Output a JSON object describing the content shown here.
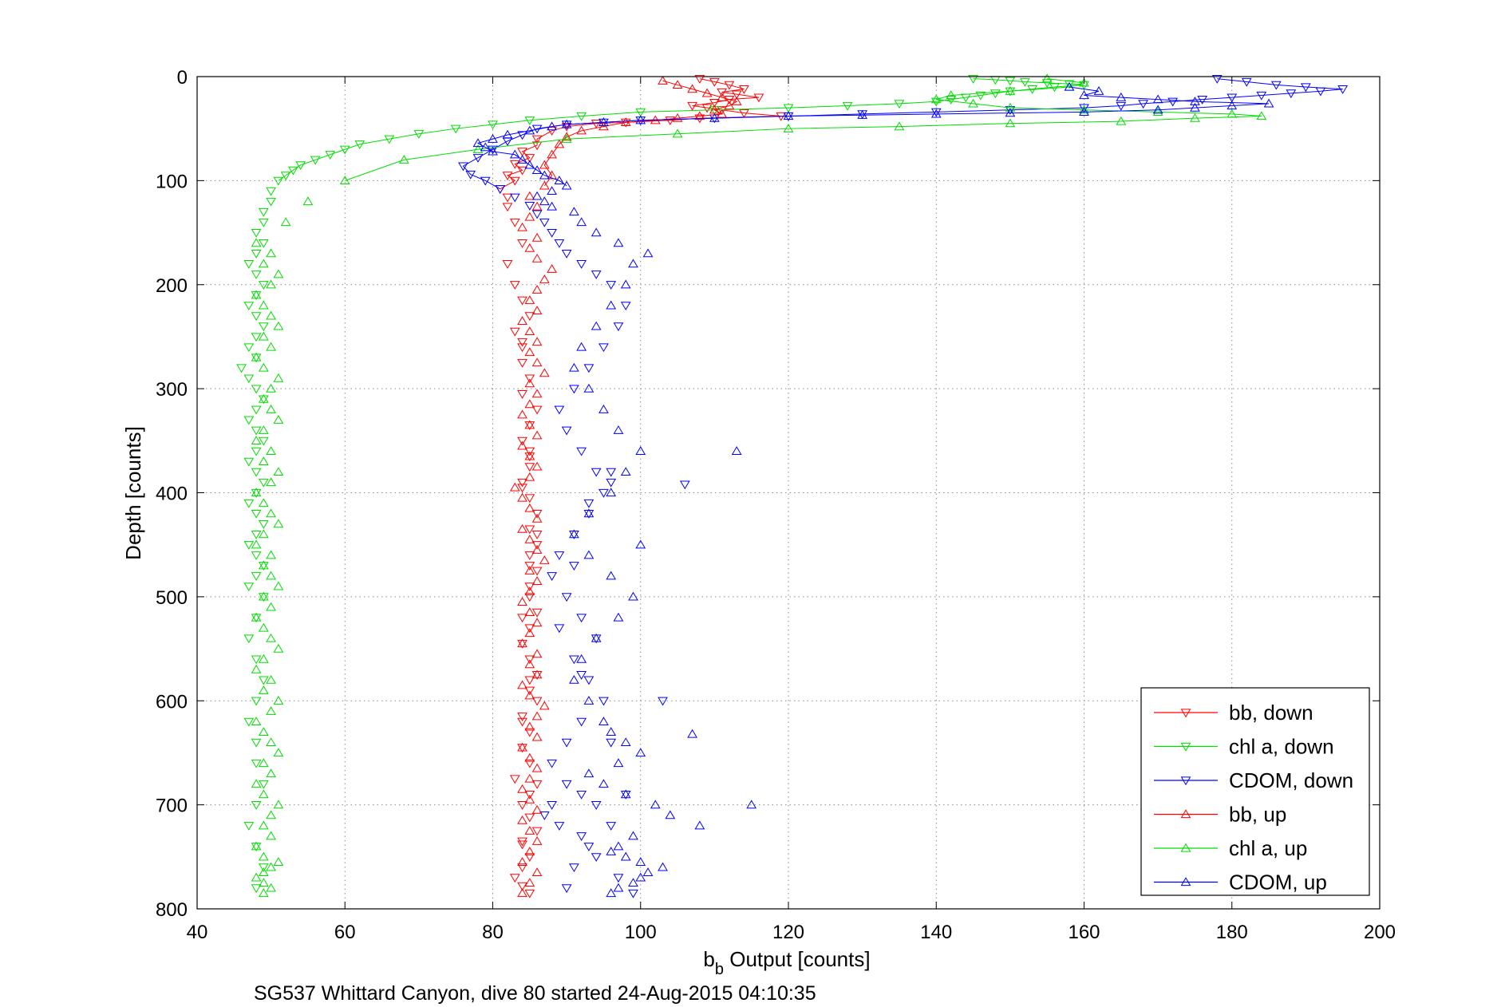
{
  "chart_data": {
    "type": "scatter",
    "xlabel_main": "b",
    "xlabel_sub": "b",
    "xlabel_rest": " Output [counts]",
    "ylabel": "Depth [counts]",
    "caption": "SG537 Whittard Canyon, dive 80 started 24-Aug-2015 04:10:35",
    "xlim": [
      40,
      200
    ],
    "ylim": [
      0,
      800
    ],
    "y_reversed": true,
    "xticks": [
      40,
      60,
      80,
      100,
      120,
      140,
      160,
      180,
      200
    ],
    "yticks": [
      0,
      100,
      200,
      300,
      400,
      500,
      600,
      700,
      800
    ],
    "xtick_labels": [
      "40",
      "60",
      "80",
      "100",
      "120",
      "140",
      "160",
      "180",
      "200"
    ],
    "ytick_labels": [
      "0",
      "100",
      "200",
      "300",
      "400",
      "500",
      "600",
      "700",
      "800"
    ],
    "grid": true,
    "legend_position": "bottom-right",
    "series": [
      {
        "name": "bb, down",
        "color": "#ff0000",
        "marker": "triangle-down",
        "x": [
          108,
          110,
          112,
          114,
          111,
          113,
          116,
          112,
          110,
          107,
          109,
          111,
          114,
          119,
          108,
          104,
          98,
          94,
          90,
          88,
          86,
          86,
          84,
          85,
          83,
          84,
          82,
          83,
          81,
          82,
          82,
          83,
          84,
          82,
          83,
          84,
          85,
          83,
          84,
          84,
          85,
          84,
          86,
          85,
          84,
          85,
          85,
          84,
          85,
          86,
          85,
          86,
          85,
          86,
          85,
          85,
          86,
          85,
          84,
          85,
          86,
          85,
          86,
          84,
          85,
          84,
          85,
          83,
          85,
          84,
          85,
          86,
          84,
          85,
          84,
          83,
          84,
          85,
          84,
          85,
          84,
          86,
          85,
          84,
          85,
          84,
          86,
          84
        ],
        "y": [
          2,
          5,
          8,
          12,
          15,
          17,
          20,
          22,
          25,
          28,
          30,
          32,
          35,
          38,
          40,
          42,
          44,
          45,
          48,
          52,
          60,
          66,
          72,
          78,
          84,
          90,
          95,
          100,
          108,
          116,
          125,
          140,
          160,
          180,
          200,
          215,
          230,
          245,
          260,
          275,
          290,
          305,
          320,
          335,
          350,
          360,
          375,
          390,
          405,
          420,
          435,
          450,
          460,
          475,
          490,
          500,
          515,
          530,
          545,
          560,
          575,
          590,
          600,
          615,
          630,
          645,
          660,
          675,
          690,
          700,
          712,
          725,
          738,
          750,
          760,
          770,
          778,
          785,
          255,
          365,
          395,
          440,
          470,
          520,
          580,
          620,
          680,
          735
        ]
      },
      {
        "name": "chl a, down",
        "color": "#00dd00",
        "marker": "triangle-down",
        "x": [
          145,
          148,
          150,
          152,
          155,
          158,
          160,
          156,
          153,
          150,
          148,
          146,
          144,
          142,
          140,
          135,
          128,
          120,
          110,
          100,
          92,
          85,
          80,
          75,
          70,
          66,
          62,
          60,
          58,
          56,
          54,
          53,
          52,
          51,
          50,
          50,
          49,
          49,
          48,
          49,
          48,
          47,
          48,
          49,
          48,
          47,
          48,
          49,
          48,
          47,
          48,
          46,
          47,
          48,
          49,
          48,
          47,
          48,
          49,
          48,
          47,
          48,
          49,
          48,
          47,
          48,
          49,
          48,
          47,
          48,
          49,
          48,
          47,
          49,
          48,
          47,
          48,
          49,
          48,
          47,
          48,
          48,
          49,
          48,
          47,
          48,
          49,
          48
        ],
        "y": [
          2,
          3,
          4,
          5,
          6,
          7,
          8,
          10,
          12,
          14,
          16,
          18,
          20,
          22,
          24,
          26,
          28,
          30,
          32,
          34,
          38,
          42,
          46,
          50,
          55,
          60,
          65,
          70,
          75,
          80,
          85,
          90,
          95,
          100,
          110,
          120,
          130,
          140,
          150,
          160,
          170,
          180,
          190,
          200,
          210,
          220,
          230,
          240,
          250,
          260,
          270,
          280,
          290,
          300,
          310,
          320,
          330,
          340,
          350,
          360,
          370,
          380,
          390,
          400,
          410,
          420,
          430,
          440,
          450,
          460,
          470,
          480,
          490,
          500,
          520,
          540,
          560,
          580,
          600,
          620,
          640,
          660,
          680,
          700,
          720,
          740,
          760,
          780
        ]
      },
      {
        "name": "CDOM, down",
        "color": "#0000ff",
        "marker": "triangle-down",
        "x": [
          178,
          182,
          186,
          190,
          195,
          192,
          188,
          184,
          180,
          176,
          172,
          168,
          165,
          160,
          150,
          140,
          130,
          120,
          110,
          100,
          95,
          90,
          86,
          84,
          82,
          80,
          78,
          76,
          77,
          79,
          81,
          83,
          85,
          86,
          87,
          88,
          89,
          90,
          92,
          94,
          96,
          98,
          97,
          95,
          93,
          91,
          89,
          90,
          92,
          94,
          96,
          95,
          93,
          91,
          89,
          88,
          90,
          92,
          94,
          106,
          91,
          93,
          95,
          92,
          90,
          88,
          90,
          92,
          103,
          94,
          96,
          93,
          91,
          90,
          88,
          87,
          89,
          92,
          94,
          97,
          99,
          96,
          93,
          91,
          89,
          92,
          96,
          98
        ],
        "y": [
          2,
          5,
          8,
          10,
          12,
          14,
          16,
          18,
          20,
          22,
          24,
          26,
          28,
          30,
          32,
          34,
          36,
          38,
          40,
          42,
          44,
          46,
          50,
          56,
          62,
          70,
          78,
          86,
          94,
          100,
          108,
          116,
          124,
          132,
          140,
          150,
          160,
          170,
          180,
          190,
          200,
          220,
          240,
          260,
          280,
          300,
          320,
          340,
          360,
          380,
          390,
          400,
          420,
          440,
          460,
          480,
          500,
          520,
          540,
          392,
          560,
          580,
          600,
          620,
          640,
          660,
          680,
          690,
          600,
          700,
          720,
          740,
          760,
          780,
          700,
          710,
          720,
          730,
          750,
          770,
          785,
          380,
          410,
          470,
          530,
          575,
          640,
          690
        ]
      },
      {
        "name": "bb, up",
        "color": "#ff0000",
        "marker": "triangle-up",
        "x": [
          84,
          85,
          86,
          84,
          85,
          86,
          85,
          84,
          86,
          85,
          84,
          85,
          86,
          85,
          84,
          86,
          85,
          86,
          87,
          85,
          84,
          86,
          85,
          86,
          84,
          85,
          86,
          85,
          84,
          85,
          86,
          85,
          87,
          86,
          85,
          84,
          86,
          85,
          84,
          83,
          85,
          86,
          85,
          84,
          86,
          85,
          84,
          85,
          86,
          85,
          87,
          86,
          85,
          86,
          85,
          84,
          86,
          85,
          86,
          87,
          88,
          86,
          85,
          86,
          84,
          85,
          86,
          85,
          87,
          88,
          87,
          88,
          89,
          90,
          92,
          95,
          98,
          102,
          105,
          108,
          111,
          110,
          112,
          113,
          111,
          109,
          107,
          105,
          103
        ],
        "y": [
          785,
          775,
          765,
          755,
          745,
          735,
          725,
          715,
          705,
          695,
          685,
          675,
          665,
          655,
          645,
          635,
          625,
          615,
          605,
          595,
          585,
          575,
          565,
          555,
          545,
          535,
          525,
          515,
          505,
          495,
          485,
          475,
          465,
          455,
          445,
          435,
          425,
          415,
          405,
          395,
          385,
          375,
          365,
          355,
          345,
          335,
          325,
          315,
          305,
          295,
          285,
          275,
          265,
          255,
          245,
          235,
          225,
          215,
          205,
          195,
          185,
          175,
          165,
          155,
          145,
          135,
          125,
          115,
          105,
          95,
          85,
          75,
          65,
          58,
          52,
          48,
          44,
          42,
          40,
          38,
          36,
          32,
          28,
          24,
          20,
          16,
          12,
          8,
          4
        ]
      },
      {
        "name": "chl a, up",
        "color": "#00dd00",
        "marker": "triangle-up",
        "x": [
          49,
          50,
          49,
          48,
          49,
          50,
          51,
          49,
          48,
          50,
          49,
          50,
          51,
          49,
          48,
          50,
          49,
          51,
          50,
          49,
          48,
          50,
          51,
          49,
          50,
          48,
          49,
          51,
          50,
          49,
          48,
          50,
          49,
          51,
          50,
          49,
          50,
          48,
          49,
          51,
          50,
          49,
          48,
          50,
          51,
          49,
          50,
          48,
          49,
          51,
          50,
          49,
          50,
          51,
          49,
          48,
          50,
          49,
          51,
          50,
          49,
          48,
          50,
          51,
          49,
          50,
          48,
          52,
          55,
          60,
          68,
          78,
          90,
          105,
          120,
          135,
          150,
          165,
          175,
          184,
          180,
          170,
          160,
          150,
          145,
          140,
          142,
          150,
          158,
          160,
          155
        ],
        "y": [
          785,
          780,
          775,
          770,
          765,
          760,
          755,
          750,
          740,
          730,
          720,
          710,
          700,
          690,
          680,
          670,
          660,
          650,
          640,
          630,
          620,
          610,
          600,
          590,
          580,
          570,
          560,
          550,
          540,
          530,
          520,
          510,
          500,
          490,
          480,
          470,
          460,
          450,
          440,
          430,
          420,
          410,
          400,
          390,
          380,
          370,
          360,
          350,
          340,
          330,
          320,
          310,
          300,
          290,
          280,
          270,
          260,
          250,
          240,
          230,
          220,
          210,
          200,
          190,
          180,
          170,
          160,
          140,
          120,
          100,
          80,
          70,
          60,
          55,
          50,
          48,
          45,
          43,
          40,
          38,
          36,
          34,
          32,
          30,
          26,
          22,
          18,
          14,
          10,
          6,
          2
        ]
      },
      {
        "name": "CDOM, up",
        "color": "#0000ff",
        "marker": "triangle-up",
        "x": [
          96,
          97,
          99,
          100,
          101,
          103,
          100,
          98,
          96,
          97,
          99,
          108,
          104,
          102,
          98,
          95,
          93,
          97,
          100,
          98,
          96,
          95,
          93,
          91,
          92,
          94,
          97,
          99,
          96,
          93,
          91,
          93,
          96,
          98,
          100,
          97,
          95,
          93,
          91,
          92,
          94,
          96,
          98,
          99,
          101,
          97,
          94,
          92,
          91,
          88,
          87,
          86,
          88,
          90,
          89,
          87,
          86,
          85,
          84,
          83,
          80,
          79,
          78,
          80,
          82,
          85,
          88,
          90,
          95,
          100,
          110,
          120,
          130,
          140,
          150,
          160,
          170,
          175,
          180,
          185,
          175,
          170,
          165,
          160,
          162,
          158,
          115,
          113,
          107,
          100
        ],
        "y": [
          785,
          780,
          775,
          770,
          765,
          760,
          755,
          750,
          745,
          740,
          730,
          720,
          710,
          700,
          690,
          680,
          670,
          660,
          650,
          640,
          630,
          620,
          600,
          580,
          560,
          540,
          520,
          500,
          480,
          460,
          440,
          420,
          400,
          380,
          360,
          340,
          320,
          300,
          280,
          260,
          240,
          220,
          200,
          180,
          170,
          160,
          150,
          140,
          130,
          125,
          120,
          115,
          110,
          105,
          100,
          95,
          90,
          85,
          80,
          75,
          72,
          68,
          64,
          60,
          56,
          52,
          48,
          46,
          44,
          42,
          40,
          38,
          37,
          36,
          35,
          34,
          32,
          30,
          28,
          26,
          24,
          22,
          20,
          18,
          14,
          10,
          700,
          360,
          632,
          450
        ]
      }
    ]
  }
}
